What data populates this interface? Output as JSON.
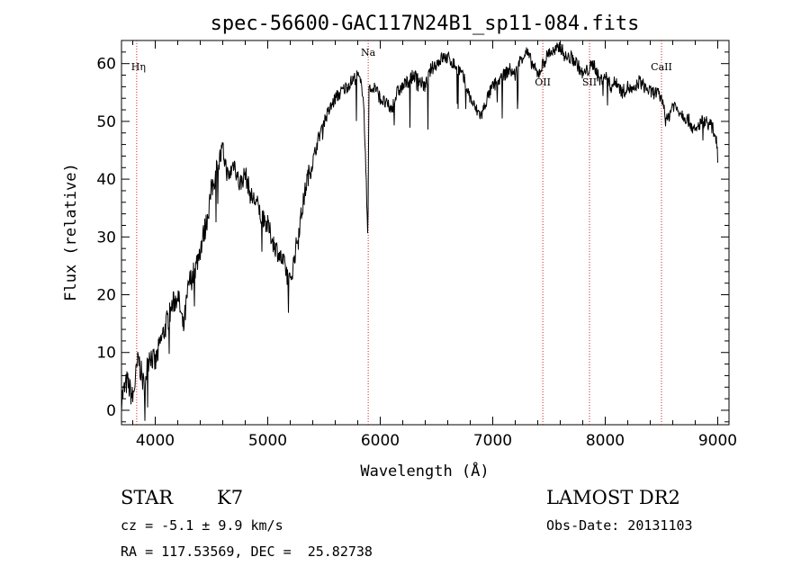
{
  "chart_data": {
    "type": "line",
    "title": "spec-56600-GAC117N24B1_sp11-084.fits",
    "xlabel": "Wavelength (Å)",
    "ylabel": "Flux (relative)",
    "xlim": [
      3700,
      9100
    ],
    "ylim": [
      -2.5,
      64
    ],
    "x_ticks": [
      4000,
      5000,
      6000,
      7000,
      8000,
      9000
    ],
    "y_ticks": [
      0,
      10,
      20,
      30,
      40,
      50,
      60
    ],
    "spectrum": {
      "x": [
        3700,
        3750,
        3800,
        3850,
        3900,
        3950,
        4000,
        4050,
        4100,
        4150,
        4200,
        4250,
        4300,
        4350,
        4400,
        4450,
        4500,
        4550,
        4600,
        4650,
        4700,
        4750,
        4800,
        4850,
        4900,
        4950,
        5000,
        5050,
        5100,
        5150,
        5200,
        5250,
        5300,
        5350,
        5400,
        5450,
        5500,
        5550,
        5600,
        5650,
        5700,
        5750,
        5800,
        5850,
        5890,
        5900,
        5910,
        5950,
        6000,
        6050,
        6100,
        6150,
        6200,
        6250,
        6300,
        6350,
        6400,
        6450,
        6500,
        6550,
        6600,
        6650,
        6700,
        6750,
        6800,
        6850,
        6900,
        6950,
        7000,
        7050,
        7100,
        7150,
        7200,
        7250,
        7300,
        7350,
        7400,
        7450,
        7500,
        7550,
        7600,
        7650,
        7700,
        7750,
        7800,
        7850,
        7900,
        7950,
        8000,
        8050,
        8100,
        8150,
        8200,
        8250,
        8300,
        8350,
        8400,
        8450,
        8500,
        8550,
        8600,
        8650,
        8700,
        8750,
        8800,
        8850,
        8900,
        8950,
        8990,
        9000
      ],
      "y": [
        2,
        5,
        2,
        9,
        4,
        10,
        8,
        12,
        15,
        18,
        20,
        14,
        22,
        24,
        28,
        32,
        38,
        42,
        45,
        40,
        43,
        39,
        41,
        37,
        36,
        33,
        32,
        29,
        27,
        25,
        22,
        28,
        34,
        40,
        43,
        47,
        50,
        52,
        54,
        55,
        56,
        57,
        58,
        55,
        30,
        57,
        55,
        56,
        54,
        53,
        52,
        55,
        56,
        57,
        58,
        57,
        56,
        59,
        60,
        61,
        61,
        60,
        59,
        57,
        54,
        52,
        51,
        54,
        56,
        57,
        58,
        59,
        58,
        61,
        62,
        60,
        58,
        60,
        62,
        62,
        63,
        61,
        61,
        60,
        58,
        59,
        60,
        57,
        58,
        56,
        57,
        55,
        56,
        55,
        57,
        56,
        55,
        55,
        54,
        50,
        53,
        52,
        51,
        50,
        48,
        50,
        50,
        49,
        47,
        44
      ]
    },
    "reference_lines": [
      {
        "label": "Hη",
        "x": 3835,
        "label_pos": "left"
      },
      {
        "label": "Na",
        "x": 5893,
        "label_pos": "center"
      },
      {
        "label": "OII",
        "x": 7445,
        "label_pos": "low"
      },
      {
        "label": "SII",
        "x": 7860,
        "label_pos": "low"
      },
      {
        "label": "CaII",
        "x": 8500,
        "label_pos": "high"
      }
    ],
    "colors": {
      "spectrum": "#000000",
      "reference_lines": "#cc2222"
    },
    "grid": false
  },
  "info": {
    "object_class": "STAR",
    "subclass": "K7",
    "survey": "LAMOST DR2",
    "cz": "cz = -5.1 ± 9.9 km/s",
    "obs_date": "Obs-Date: 20131103",
    "coords": "RA = 117.53569, DEC =  25.82738"
  }
}
